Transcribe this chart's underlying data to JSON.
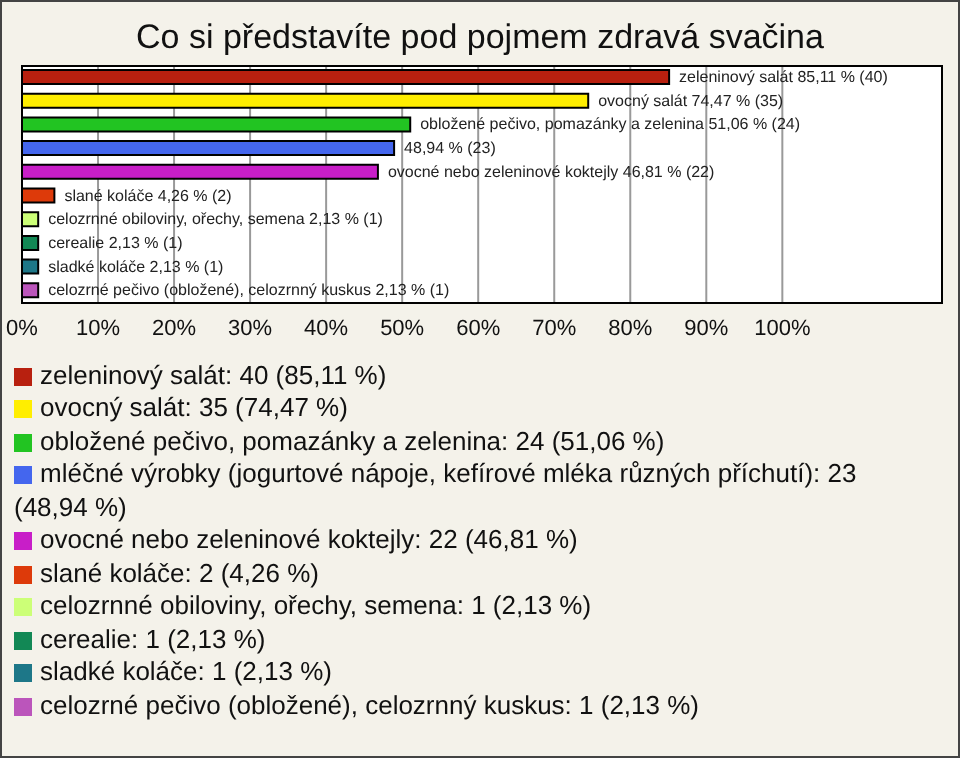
{
  "chart_data": {
    "type": "bar",
    "orientation": "horizontal",
    "stacked": true,
    "title": "Co si představíte pod pojmem zdravá svačina",
    "categories": [
      null,
      null,
      null,
      null,
      null,
      null,
      null,
      null,
      null,
      null
    ],
    "series": [
      {
        "name": "zeleninový salát: 40 (85,11 %)",
        "color": "#b8200f",
        "values": [
          85.11,
          null,
          null,
          null,
          null,
          null,
          null,
          null,
          null,
          null
        ],
        "value_labels": [
          "zeleninový salát 85,11 % (40)",
          null,
          null,
          null,
          null,
          null,
          null,
          null,
          null,
          null
        ]
      },
      {
        "name": "ovocný salát: 35 (74,47 %)",
        "color": "#ffee00",
        "values": [
          null,
          74.47,
          null,
          null,
          null,
          null,
          null,
          null,
          null,
          null
        ],
        "value_labels": [
          null,
          "ovocný salát 74,47 % (35)",
          null,
          null,
          null,
          null,
          null,
          null,
          null,
          null
        ]
      },
      {
        "name": "obložené pečivo, pomazánky a zelenina: 24 (51,06 %)",
        "color": "#22c422",
        "values": [
          null,
          null,
          51.06,
          null,
          null,
          null,
          null,
          null,
          null,
          null
        ],
        "value_labels": [
          null,
          null,
          "obložené pečivo, pomazánky a zelenina 51,06 % (24)",
          null,
          null,
          null,
          null,
          null,
          null,
          null
        ]
      },
      {
        "name": "mléčné výrobky (jogurtové nápoje, kefírové mléka různých příchutí): 23 (48,94 %)",
        "color": "#4466ee",
        "values": [
          null,
          null,
          null,
          48.94,
          null,
          null,
          null,
          null,
          null,
          null
        ],
        "value_labels": [
          null,
          null,
          null,
          "48,94 % (23)",
          null,
          null,
          null,
          null,
          null,
          null
        ]
      },
      {
        "name": "ovocné nebo zeleninové koktejly: 22 (46,81 %)",
        "color": "#c81ec8",
        "values": [
          null,
          null,
          null,
          null,
          46.81,
          null,
          null,
          null,
          null,
          null
        ],
        "value_labels": [
          null,
          null,
          null,
          null,
          "ovocné nebo zeleninové koktejly 46,81 % (22)",
          null,
          null,
          null,
          null,
          null
        ]
      },
      {
        "name": "slané koláče: 2 (4,26 %)",
        "color": "#dd3a0a",
        "values": [
          null,
          null,
          null,
          null,
          null,
          4.26,
          null,
          null,
          null,
          null
        ],
        "value_labels": [
          null,
          null,
          null,
          null,
          null,
          "slané koláče 4,26 % (2)",
          null,
          null,
          null,
          null
        ]
      },
      {
        "name": "celozrnné obiloviny, ořechy, semena: 1 (2,13 %)",
        "color": "#ccff77",
        "values": [
          null,
          null,
          null,
          null,
          null,
          null,
          2.13,
          null,
          null,
          null
        ],
        "value_labels": [
          null,
          null,
          null,
          null,
          null,
          null,
          "celozrnné obiloviny, ořechy, semena 2,13 % (1)",
          null,
          null,
          null
        ]
      },
      {
        "name": "cerealie: 1 (2,13 %)",
        "color": "#128855",
        "values": [
          null,
          null,
          null,
          null,
          null,
          null,
          null,
          2.13,
          null,
          null
        ],
        "value_labels": [
          null,
          null,
          null,
          null,
          null,
          null,
          null,
          "cerealie 2,13 % (1)",
          null,
          null
        ]
      },
      {
        "name": "sladké koláče: 1 (2,13 %)",
        "color": "#1d7788",
        "values": [
          null,
          null,
          null,
          null,
          null,
          null,
          null,
          null,
          2.13,
          null
        ],
        "value_labels": [
          null,
          null,
          null,
          null,
          null,
          null,
          null,
          null,
          "sladké koláče 2,13 % (1)",
          null
        ]
      },
      {
        "name": "celozrné pečivo (obložené), celozrnný kuskus: 1 (2,13 %)",
        "color": "#bb55bb",
        "values": [
          null,
          null,
          null,
          null,
          null,
          null,
          null,
          null,
          null,
          2.13
        ],
        "value_labels": [
          null,
          null,
          null,
          null,
          null,
          null,
          null,
          null,
          null,
          "celozrné pečivo (obložené), celozrnný kuskus 2,13 % (1)"
        ]
      }
    ],
    "xlim": [
      0,
      121
    ],
    "xticks": [
      {
        "value": 0,
        "label": "0%"
      },
      {
        "value": 10,
        "label": "10%"
      },
      {
        "value": 20,
        "label": "20%"
      },
      {
        "value": 30,
        "label": "30%"
      },
      {
        "value": 40,
        "label": "40%"
      },
      {
        "value": 50,
        "label": "50%"
      },
      {
        "value": 60,
        "label": "60%"
      },
      {
        "value": 70,
        "label": "70%"
      },
      {
        "value": 80,
        "label": "80%"
      },
      {
        "value": 90,
        "label": "90%"
      },
      {
        "value": 100,
        "label": "100%"
      }
    ],
    "grid": "x",
    "legend": "bottom",
    "tick_labels": "x"
  }
}
